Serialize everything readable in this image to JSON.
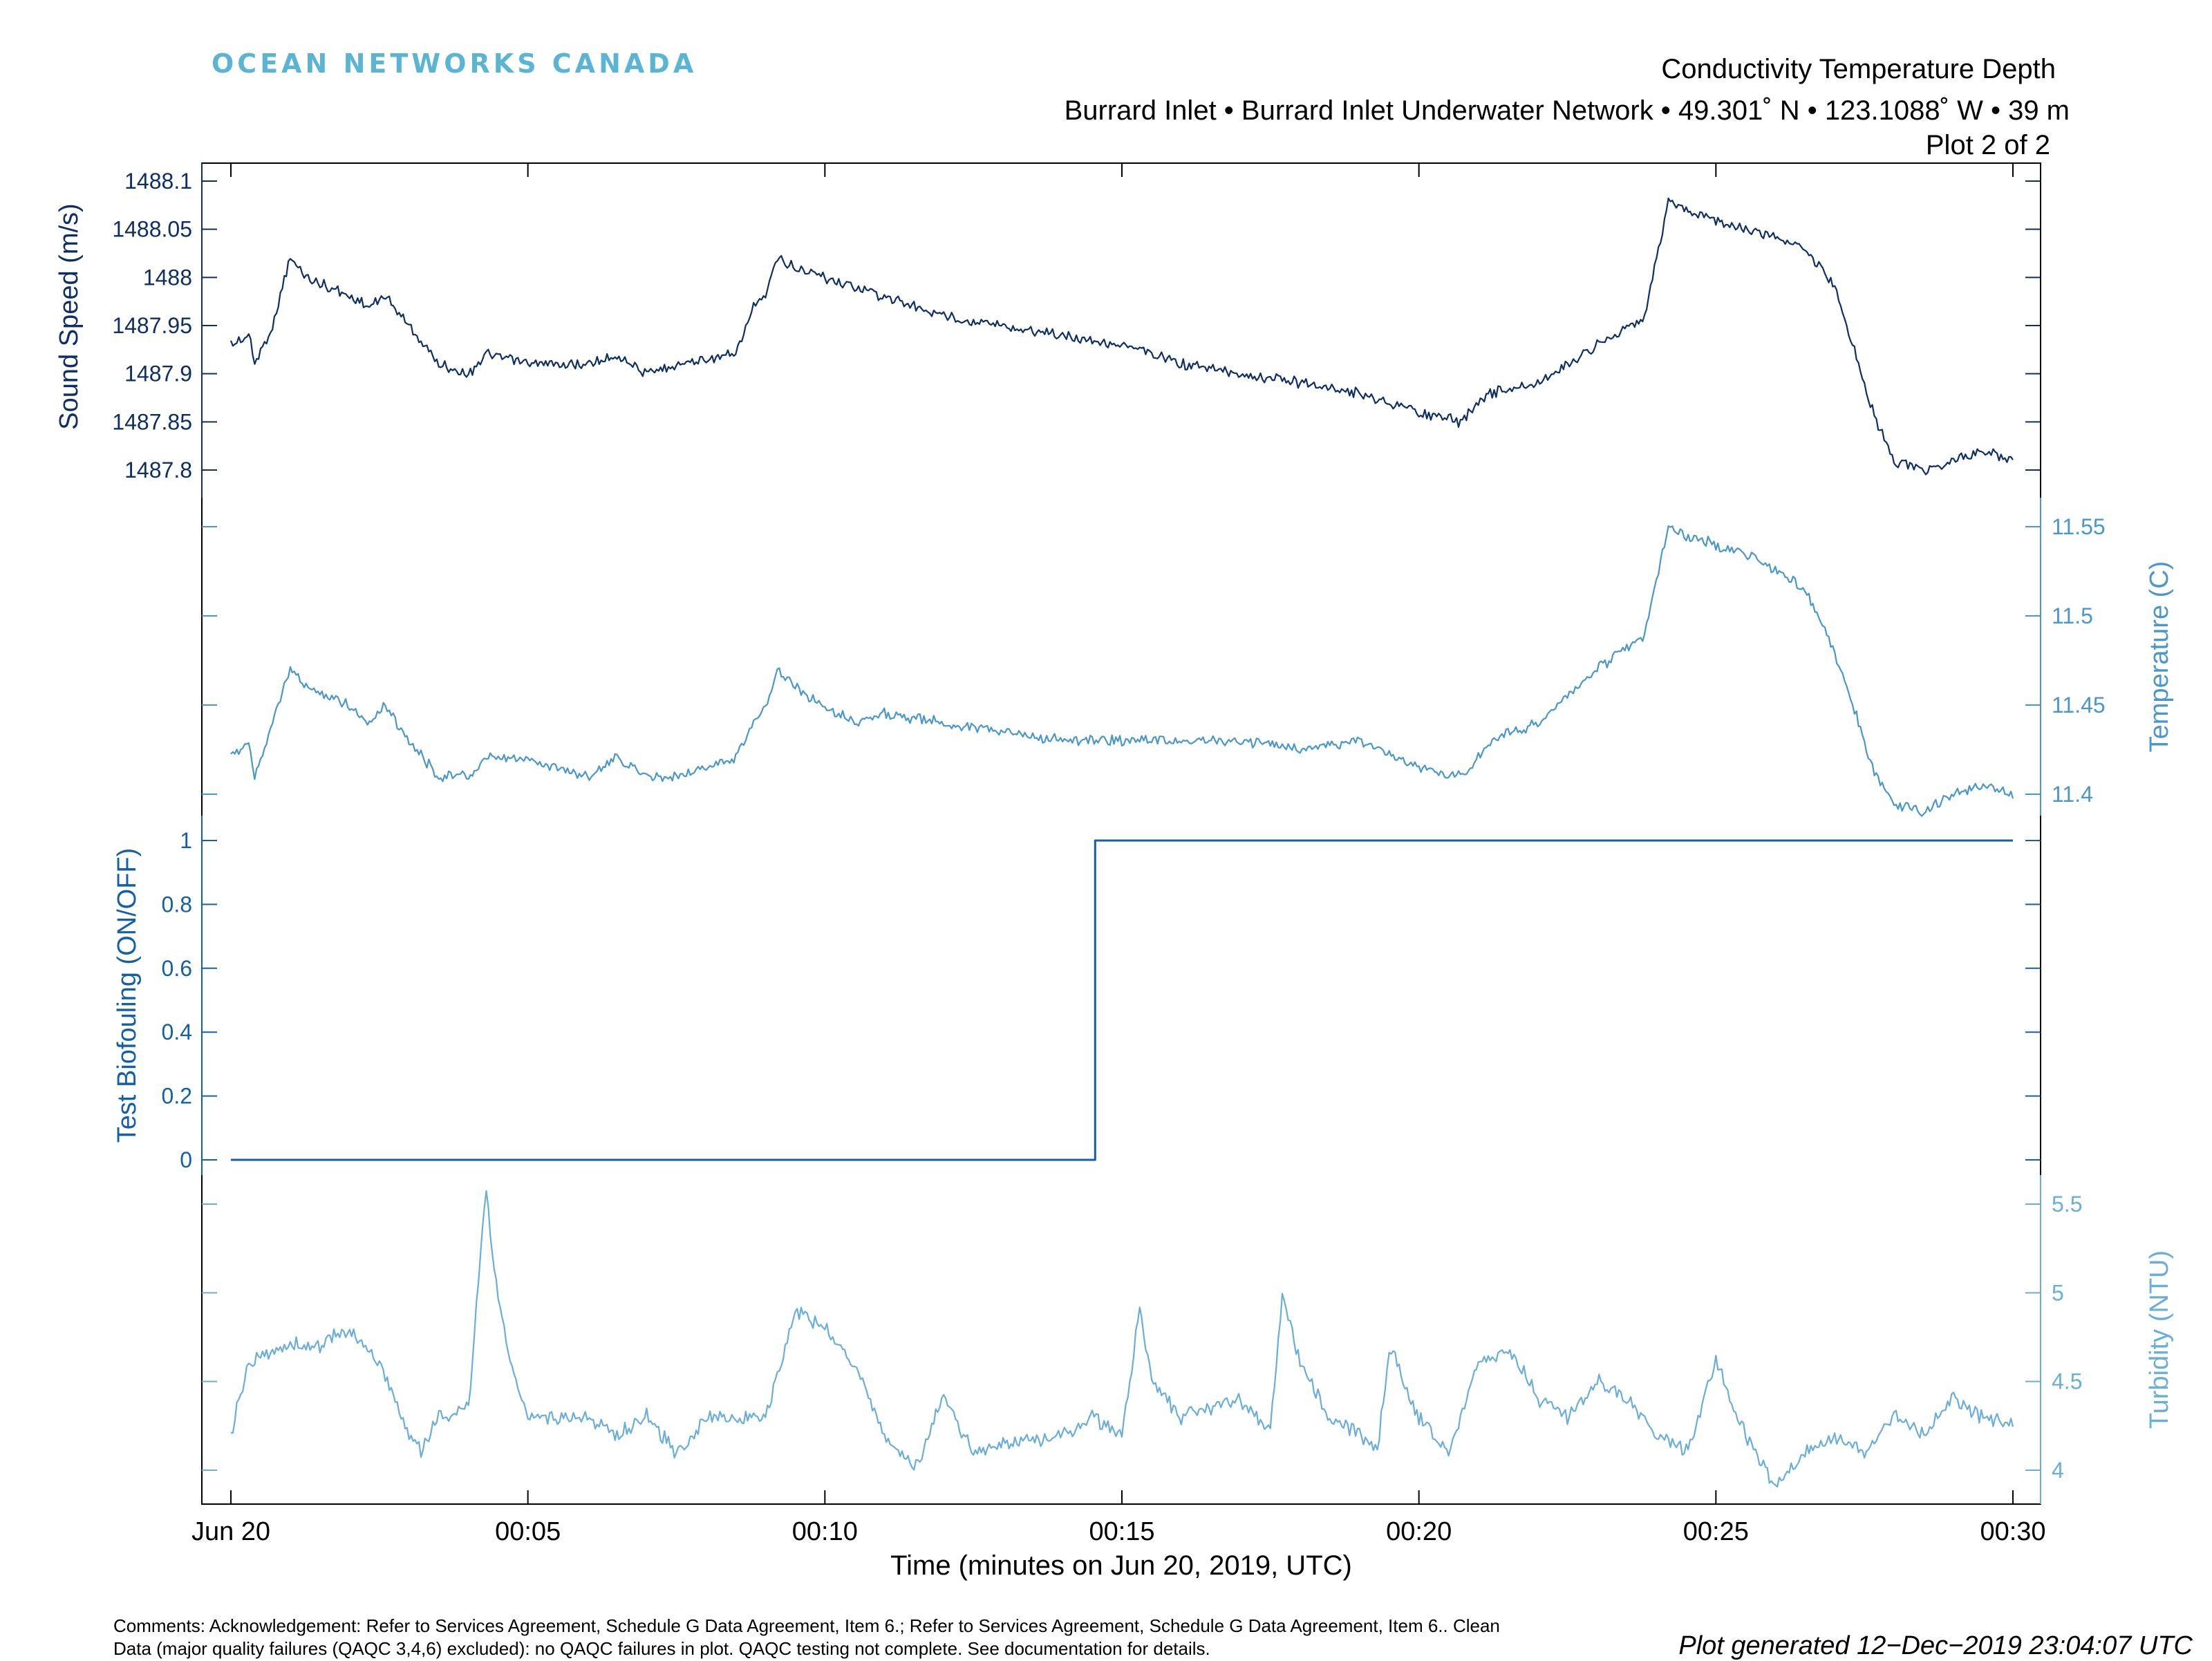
{
  "header": {
    "brand": "OCEAN NETWORKS CANADA",
    "title": "Conductivity Temperature Depth",
    "subtitle": "Burrard Inlet  • Burrard Inlet Underwater Network  •  49.301˚ N  •  123.1088˚ W  •  39 m",
    "plot_number": "Plot 2 of 2"
  },
  "footer": {
    "comments_line1": "Comments: Acknowledgement: Refer to Services Agreement, Schedule G Data Agreement, Item 6.; Refer to Services Agreement, Schedule G Data Agreement, Item 6.. Clean",
    "comments_line2": "Data (major quality failures (QAQC 3,4,6) excluded): no QAQC failures in plot. QAQC testing not complete. See documentation for details.",
    "generated": "Plot generated 12−Dec−2019 23:04:07 UTC"
  },
  "colors": {
    "sound_speed": "#0d2f66",
    "temperature": "#4a97cb",
    "biofouling": "#1460a8",
    "turbidity": "#6aaed9",
    "frame": "#000000"
  },
  "chart_data": {
    "type": "line",
    "xlabel": "Time (minutes on Jun 20, 2019, UTC)",
    "xlim": [
      0,
      30
    ],
    "x_ticks": [
      0,
      5,
      10,
      15,
      20,
      25,
      30
    ],
    "x_tick_labels": [
      "Jun 20",
      "00:05",
      "00:10",
      "00:15",
      "00:20",
      "00:25",
      "00:30"
    ],
    "grid": false,
    "panels": [
      {
        "name": "sound_speed",
        "ylabel": "Sound Speed (m/s)",
        "axis_side": "left",
        "ylim": [
          1487.785,
          1488.115
        ],
        "y_ticks": [
          1487.8,
          1487.85,
          1487.9,
          1487.95,
          1488,
          1488.05,
          1488.1
        ],
        "y_tick_labels": [
          "1487.8",
          "1487.85",
          "1487.9",
          "1487.95",
          "1488",
          "1488.05",
          "1488.1"
        ],
        "x": [
          0,
          0.3,
          0.4,
          0.7,
          1.0,
          1.3,
          2.0,
          2.3,
          2.6,
          3.0,
          3.5,
          4.0,
          4.3,
          5.0,
          6.0,
          6.5,
          7.0,
          7.5,
          8.5,
          8.8,
          9.0,
          9.2,
          9.5,
          10.0,
          10.5,
          11.0,
          12.0,
          13.0,
          14.0,
          15.0,
          16.0,
          17.0,
          18.0,
          19.0,
          20.0,
          20.7,
          21.0,
          21.2,
          22.0,
          23.0,
          23.8,
          24.0,
          24.2,
          24.5,
          25.0,
          25.5,
          26.0,
          26.5,
          27.0,
          27.3,
          27.7,
          28.0,
          28.5,
          29.0,
          29.5,
          30.0
        ],
        "values": [
          1487.93,
          1487.94,
          1487.91,
          1487.95,
          1488.02,
          1488.0,
          1487.98,
          1487.97,
          1487.98,
          1487.95,
          1487.91,
          1487.9,
          1487.92,
          1487.91,
          1487.91,
          1487.92,
          1487.9,
          1487.91,
          1487.92,
          1487.97,
          1487.98,
          1488.02,
          1488.01,
          1488.0,
          1487.99,
          1487.98,
          1487.96,
          1487.95,
          1487.94,
          1487.93,
          1487.91,
          1487.9,
          1487.89,
          1487.88,
          1487.86,
          1487.85,
          1487.87,
          1487.88,
          1487.89,
          1487.93,
          1487.96,
          1488.02,
          1488.08,
          1488.07,
          1488.06,
          1488.05,
          1488.04,
          1488.03,
          1487.99,
          1487.93,
          1487.85,
          1487.81,
          1487.8,
          1487.81,
          1487.82,
          1487.81
        ]
      },
      {
        "name": "temperature",
        "ylabel": "Temperature (C)",
        "axis_side": "right",
        "ylim": [
          11.385,
          11.565
        ],
        "y_ticks": [
          11.4,
          11.45,
          11.5,
          11.55
        ],
        "y_tick_labels": [
          "11.4",
          "11.45",
          "11.5",
          "11.55"
        ],
        "x": [
          0,
          0.3,
          0.4,
          0.7,
          1.0,
          1.3,
          2.0,
          2.3,
          2.6,
          3.0,
          3.5,
          4.0,
          4.3,
          5.0,
          6.0,
          6.5,
          7.0,
          7.5,
          8.5,
          8.8,
          9.0,
          9.2,
          9.5,
          10.0,
          10.5,
          11.0,
          12.0,
          13.0,
          14.0,
          15.0,
          16.0,
          17.0,
          18.0,
          19.0,
          20.0,
          20.7,
          21.0,
          21.2,
          22.0,
          23.0,
          23.8,
          24.0,
          24.2,
          24.5,
          25.0,
          25.5,
          26.0,
          26.5,
          27.0,
          27.3,
          27.7,
          28.0,
          28.5,
          29.0,
          29.5,
          30.0
        ],
        "values": [
          11.42,
          11.43,
          11.41,
          11.44,
          11.47,
          11.46,
          11.45,
          11.44,
          11.45,
          11.43,
          11.41,
          11.41,
          11.42,
          11.42,
          11.41,
          11.42,
          11.41,
          11.41,
          11.42,
          11.44,
          11.45,
          11.47,
          11.46,
          11.45,
          11.44,
          11.445,
          11.44,
          11.435,
          11.43,
          11.43,
          11.43,
          11.43,
          11.425,
          11.43,
          11.415,
          11.41,
          11.42,
          11.43,
          11.44,
          11.47,
          11.49,
          11.52,
          11.55,
          11.545,
          11.54,
          11.535,
          11.525,
          11.515,
          11.48,
          11.45,
          11.41,
          11.395,
          11.39,
          11.4,
          11.405,
          11.4
        ]
      },
      {
        "name": "biofouling",
        "ylabel": "Test Biofouling (ON/OFF)",
        "axis_side": "left",
        "ylim": [
          -0.1,
          1.1
        ],
        "y_ticks": [
          0,
          0.2,
          0.4,
          0.6,
          0.8,
          1
        ],
        "y_tick_labels": [
          "0",
          "0.2",
          "0.4",
          "0.6",
          "0.8",
          "1"
        ],
        "x": [
          0,
          14.55,
          14.55,
          30.0
        ],
        "values": [
          0,
          0,
          1,
          1
        ]
      },
      {
        "name": "turbidity",
        "ylabel": "Turbidity (NTU)",
        "axis_side": "right",
        "ylim": [
          3.8,
          5.8
        ],
        "y_ticks": [
          4,
          4.5,
          5,
          5.5
        ],
        "y_tick_labels": [
          "4",
          "4.5",
          "5",
          "5.5"
        ],
        "x": [
          0,
          0.3,
          0.8,
          1.5,
          2.0,
          2.5,
          3.0,
          3.2,
          3.5,
          4.0,
          4.3,
          4.4,
          4.7,
          5.0,
          6.0,
          6.5,
          7.0,
          7.5,
          8.0,
          9.0,
          9.5,
          10.0,
          10.5,
          11.0,
          11.5,
          12.0,
          12.5,
          13.0,
          14.0,
          14.5,
          15.0,
          15.3,
          15.5,
          16.0,
          17.0,
          17.5,
          17.7,
          18.0,
          18.5,
          19.0,
          19.3,
          19.5,
          20.0,
          20.5,
          21.0,
          21.5,
          22.0,
          22.5,
          23.0,
          23.5,
          24.0,
          24.5,
          25.0,
          25.5,
          26.0,
          26.5,
          27.0,
          27.5,
          28.0,
          28.5,
          29.0,
          29.5,
          30.0
        ],
        "values": [
          4.2,
          4.6,
          4.7,
          4.7,
          4.8,
          4.6,
          4.2,
          4.1,
          4.3,
          4.35,
          5.6,
          5.2,
          4.6,
          4.3,
          4.3,
          4.2,
          4.3,
          4.1,
          4.3,
          4.3,
          4.9,
          4.8,
          4.6,
          4.2,
          4.0,
          4.4,
          4.1,
          4.15,
          4.2,
          4.3,
          4.2,
          4.9,
          4.5,
          4.3,
          4.4,
          4.2,
          5.0,
          4.6,
          4.3,
          4.2,
          4.1,
          4.7,
          4.3,
          4.1,
          4.6,
          4.7,
          4.4,
          4.3,
          4.5,
          4.4,
          4.2,
          4.1,
          4.6,
          4.2,
          3.9,
          4.1,
          4.2,
          4.1,
          4.3,
          4.2,
          4.4,
          4.3,
          4.25
        ]
      }
    ]
  }
}
